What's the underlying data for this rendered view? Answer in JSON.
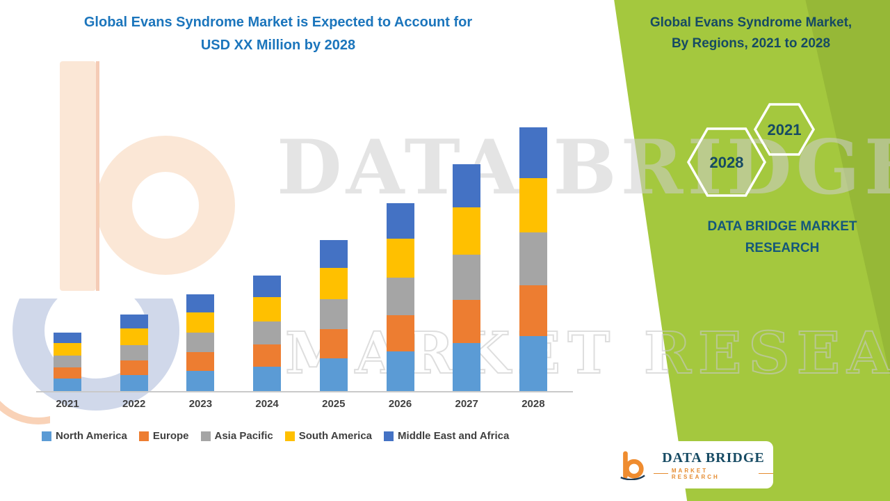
{
  "header": {
    "title_line1": "Global Evans Syndrome Market is Expected to Account for",
    "title_line2": "USD XX Million by 2028"
  },
  "side_panel": {
    "title_line1": "Global Evans Syndrome Market,",
    "title_line2": "By Regions, 2021 to 2028",
    "hexagons": [
      {
        "label": "2028"
      },
      {
        "label": "2021"
      }
    ],
    "brand_line1": "DATA BRIDGE MARKET",
    "brand_line2": "RESEARCH"
  },
  "watermark": {
    "line1": "DATA BRIDGE",
    "line2": "MARKET RESEARCH"
  },
  "logo_card": {
    "name": "DATA BRIDGE",
    "subtitle": "MARKET RESEARCH"
  },
  "colors": {
    "accent_blue": "#1b75bc",
    "panel_green": "#a4c83e",
    "panel_green_dark": "#96b837",
    "navy": "#164a63",
    "navy_teal": "#14577a",
    "orange": "#e58b2f"
  },
  "chart_data": {
    "type": "bar",
    "stacked": true,
    "title": "Global Evans Syndrome Market is Expected to Account for USD XX Million by 2028",
    "xlabel": "",
    "ylabel": "",
    "categories": [
      "2021",
      "2022",
      "2023",
      "2024",
      "2025",
      "2026",
      "2027",
      "2028"
    ],
    "series": [
      {
        "name": "North America",
        "color": "#5b9bd5",
        "values": [
          19,
          24,
          30,
          36,
          48,
          58,
          70,
          80
        ]
      },
      {
        "name": "Europe",
        "color": "#ed7d31",
        "values": [
          16,
          21,
          27,
          32,
          42,
          52,
          62,
          73
        ]
      },
      {
        "name": "Asia Pacific",
        "color": "#a5a5a5",
        "values": [
          17,
          22,
          28,
          33,
          43,
          54,
          65,
          76
        ]
      },
      {
        "name": "South America",
        "color": "#ffc000",
        "values": [
          18,
          24,
          29,
          35,
          45,
          56,
          68,
          78
        ]
      },
      {
        "name": "Middle East and Africa",
        "color": "#4472c4",
        "values": [
          15,
          20,
          26,
          31,
          40,
          51,
          62,
          73
        ]
      }
    ],
    "ylim": [
      0,
      400
    ],
    "y_axis_labels_visible": false,
    "grid": false,
    "legend_position": "bottom"
  }
}
